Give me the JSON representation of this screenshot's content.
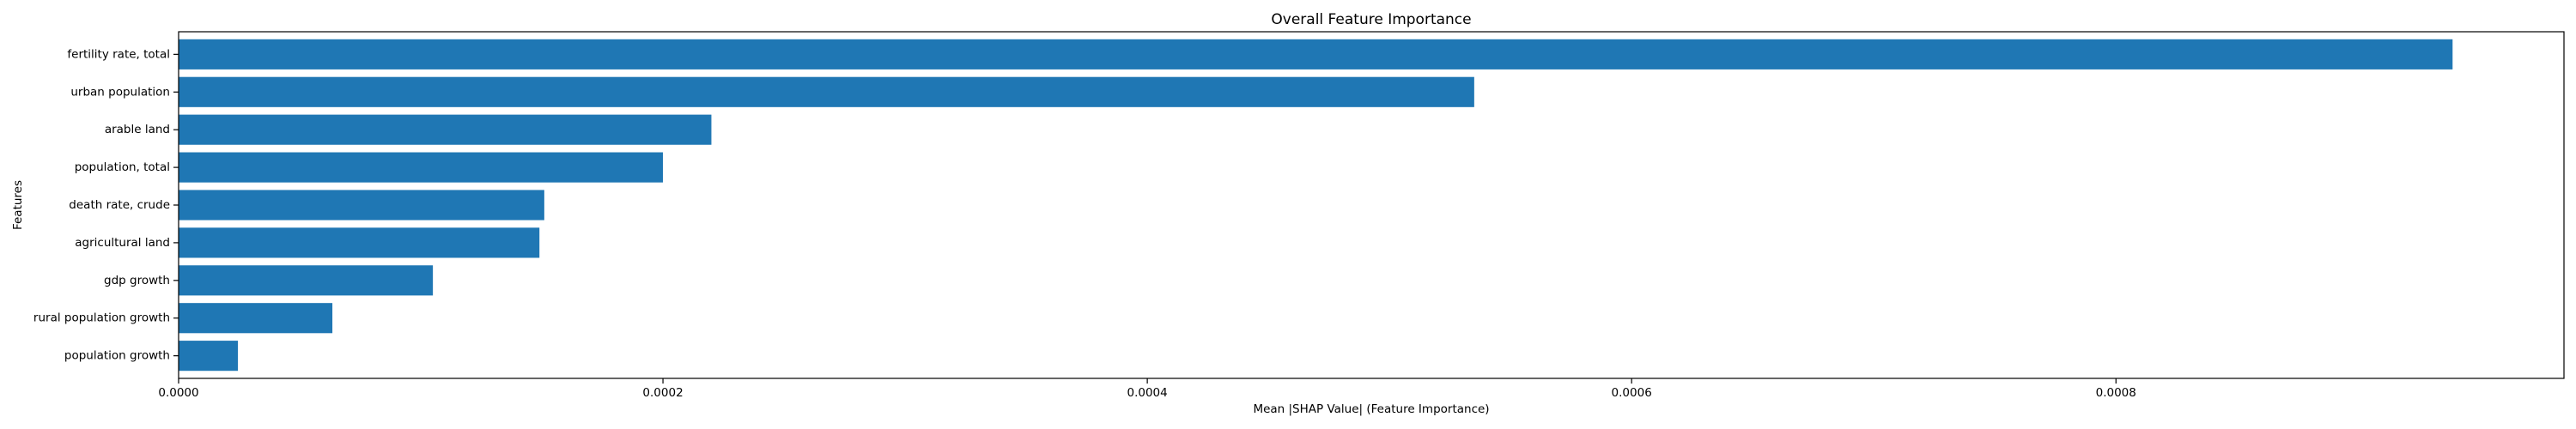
{
  "chart_data": {
    "type": "bar",
    "orientation": "horizontal",
    "title": "Overall Feature Importance",
    "xlabel": "Mean |SHAP Value| (Feature Importance)",
    "ylabel": "Features",
    "categories": [
      "fertility rate, total",
      "urban population",
      "arable land",
      "population, total",
      "death rate, crude",
      "agricultural land",
      "gdp growth",
      "rural population growth",
      "population growth"
    ],
    "values": [
      0.000939,
      0.000535,
      0.00022,
      0.0002,
      0.000151,
      0.000149,
      0.000105,
      6.35e-05,
      2.45e-05
    ],
    "xlim": [
      0,
      0.000985
    ],
    "xticks": [
      0,
      0.0002,
      0.0004,
      0.0006,
      0.0008
    ],
    "xtick_labels": [
      "0.0000",
      "0.0002",
      "0.0004",
      "0.0006",
      "0.0008"
    ],
    "grid": false,
    "legend": "none",
    "bar_color": "#1f77b4"
  }
}
